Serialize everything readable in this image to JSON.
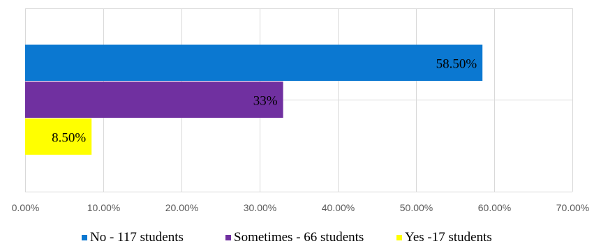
{
  "chart_data": {
    "type": "bar",
    "orientation": "horizontal",
    "title": "",
    "xlabel": "",
    "ylabel": "",
    "xlim": [
      0,
      70
    ],
    "x_ticks": [
      "0.00%",
      "10.00%",
      "20.00%",
      "30.00%",
      "40.00%",
      "50.00%",
      "60.00%",
      "70.00%"
    ],
    "grid": true,
    "legend_position": "bottom",
    "series": [
      {
        "name": "No - 117 students",
        "value": 58.5,
        "label": "58.50%",
        "color": "#0B78D1"
      },
      {
        "name": "Sometimes - 66 students",
        "value": 33,
        "label": "33%",
        "color": "#7030A0"
      },
      {
        "name": "Yes -17 students",
        "value": 8.5,
        "label": "8.50%",
        "color": "#FFFF00"
      }
    ]
  }
}
